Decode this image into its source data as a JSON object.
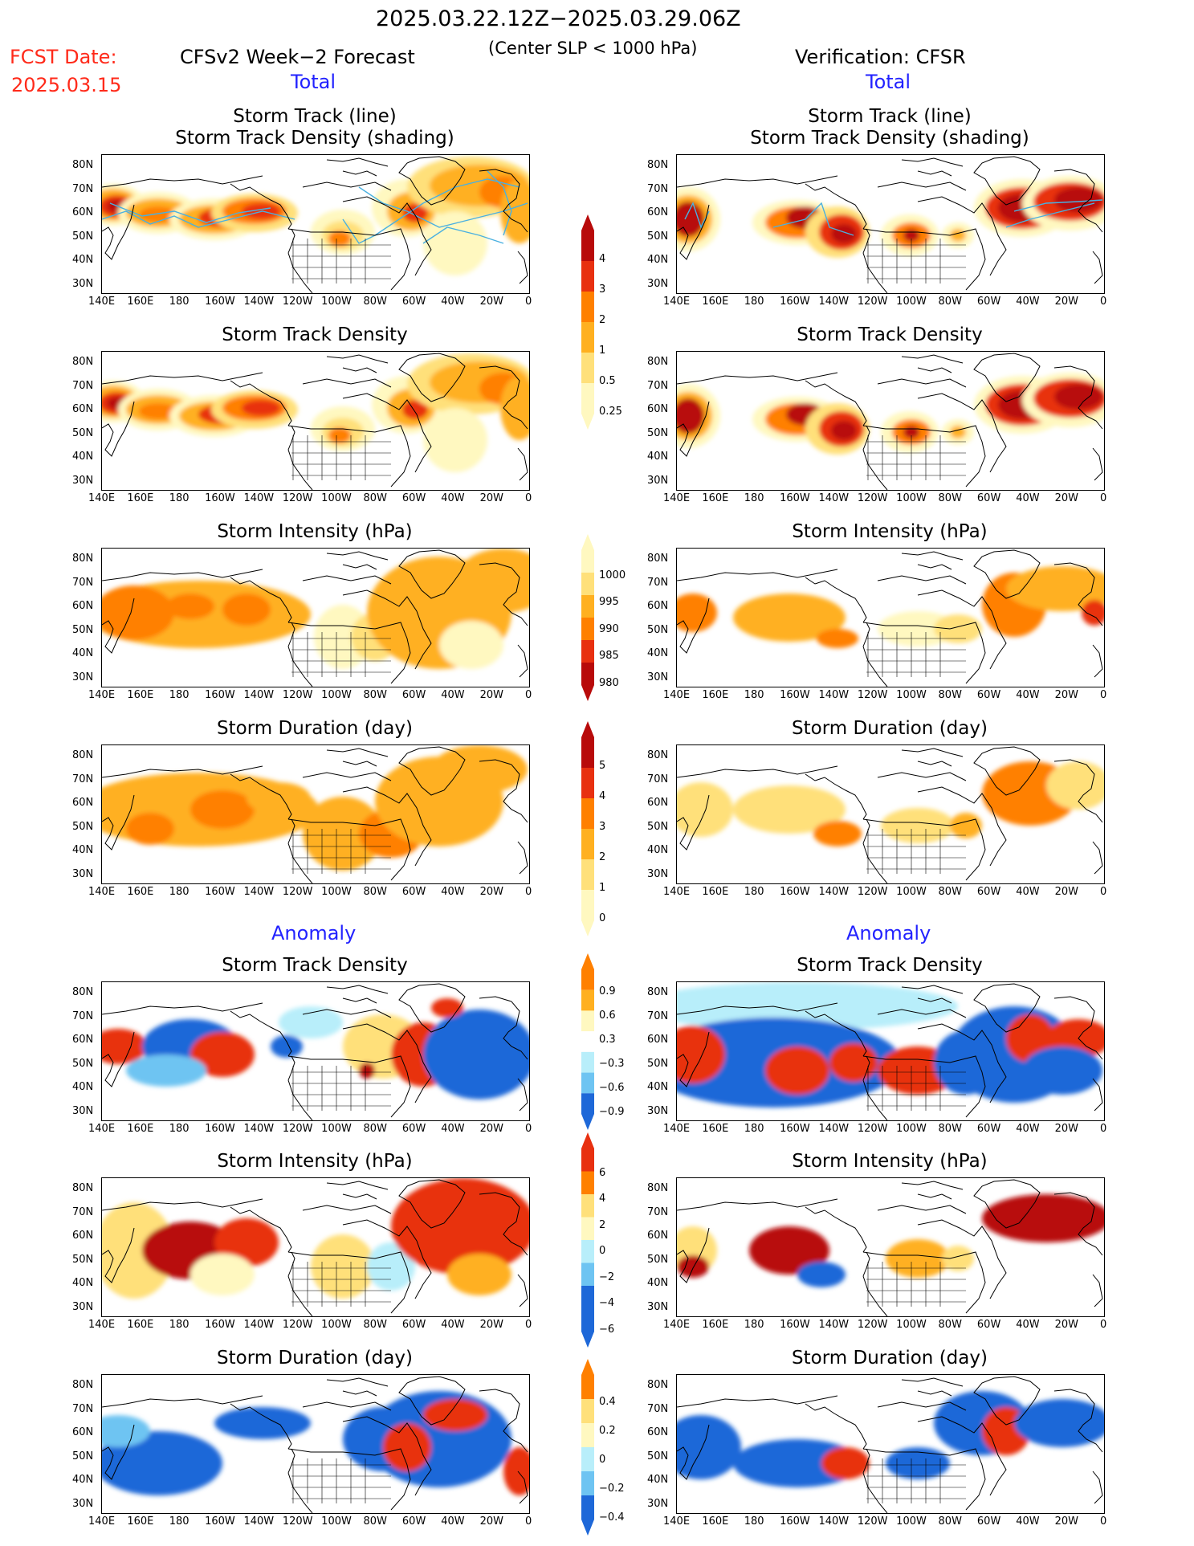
{
  "header": {
    "date_range": "2025.03.22.12Z−2025.03.29.06Z",
    "fcst_label": "FCST Date:",
    "fcst_date": "2025.03.15",
    "left_title": "CFSv2 Week−2 Forecast",
    "center_note": "(Center SLP < 1000 hPa)",
    "right_title": "Verification: CFSR",
    "total_left": "Total",
    "total_right": "Total",
    "anomaly_left": "Anomaly",
    "anomaly_right": "Anomaly"
  },
  "panel_titles": {
    "track_line": "Storm Track (line)",
    "track_shading": "Storm Track Density (shading)",
    "density": "Storm Track Density",
    "intensity": "Storm Intensity (hPa)",
    "duration": "Storm Duration (day)"
  },
  "axes": {
    "lat_labels": [
      "80N",
      "70N",
      "60N",
      "50N",
      "40N",
      "30N"
    ],
    "lon_labels": [
      "140E",
      "160E",
      "180",
      "160W",
      "140W",
      "120W",
      "100W",
      "80W",
      "60W",
      "40W",
      "20W",
      "0"
    ]
  },
  "colorbars": {
    "density": [
      "4",
      "3",
      "2",
      "1",
      "0.5",
      "0.25"
    ],
    "intensity": [
      "1000",
      "995",
      "990",
      "985",
      "980"
    ],
    "duration": [
      "5",
      "4",
      "3",
      "2",
      "1",
      "0"
    ],
    "density_anom": [
      "0.9",
      "0.6",
      "0.3",
      "−0.3",
      "−0.6",
      "−0.9"
    ],
    "intensity_anom": [
      "6",
      "4",
      "2",
      "0",
      "−2",
      "−4",
      "−6"
    ],
    "duration_anom": [
      "0.4",
      "0.2",
      "0",
      "−0.2",
      "−0.4"
    ]
  },
  "colors": {
    "warm": [
      "#fff8c0",
      "#ffe07a",
      "#ffb020",
      "#ff8000",
      "#e83010",
      "#b80a0a"
    ],
    "cool": [
      "#b8eefa",
      "#6ec4f2",
      "#1e68d8"
    ],
    "track_line": "#4ab0e0"
  }
}
